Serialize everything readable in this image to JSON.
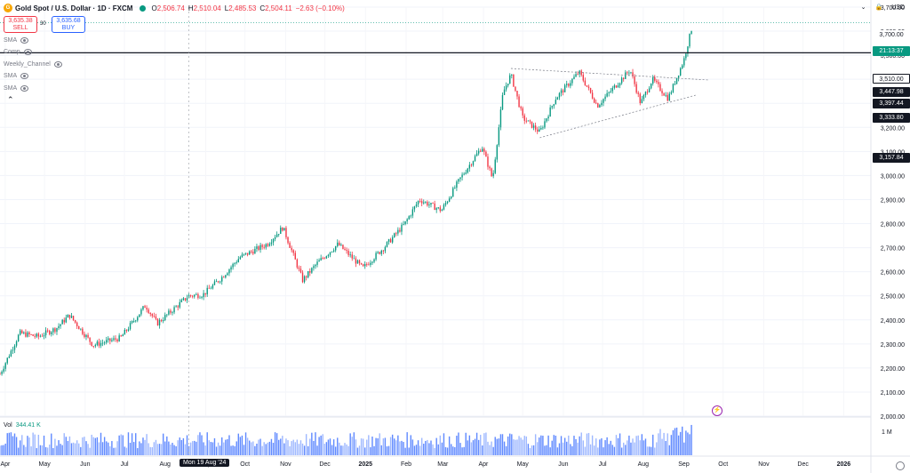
{
  "header": {
    "symbol": "Gold Spot / U.S. Dollar · 1D · FXCM",
    "o_label": "O",
    "o_value": "2,506.74",
    "h_label": "H",
    "h_value": "2,510.04",
    "l_label": "L",
    "l_value": "2,485.53",
    "c_label": "C",
    "c_value": "2,504.11",
    "change": "−2.63 (−0.10%)"
  },
  "trade": {
    "sell_price": "3,635.38",
    "sell_label": "SELL",
    "spread": "30",
    "buy_price": "3,635.68",
    "buy_label": "BUY"
  },
  "indicators": [
    "SMA",
    "Comp",
    "Weekly_Channel",
    "SMA",
    "SMA"
  ],
  "currency": "USD",
  "volume": {
    "label": "Vol",
    "value": "344.41 K",
    "axis_label": "1 M"
  },
  "crosshair_date": "Mon 19 Aug '24",
  "price_labels": {
    "top": "3,700.00",
    "current_time": "21:13:37",
    "level": "3,510.00",
    "p1": "3,447.98",
    "p2": "3,397.44",
    "p3": "3,333.80",
    "p4": "3,157.84"
  },
  "colors": {
    "up": "#089981",
    "down": "#f23645",
    "level_line": "#131722",
    "current": "#089981",
    "volume": "#2962ff"
  },
  "chart_data": {
    "type": "candlestick",
    "title": "Gold Spot / U.S. Dollar · 1D · FXCM",
    "ylim": [
      2000,
      3700
    ],
    "y_ticks": [
      "2,000.00",
      "2,100.00",
      "2,200.00",
      "2,300.00",
      "2,400.00",
      "2,500.00",
      "2,600.00",
      "2,700.00",
      "2,800.00",
      "2,900.00",
      "3,000.00",
      "3,100.00",
      "3,200.00",
      "3,300.00",
      "3,400.00",
      "3,500.00",
      "3,600.00",
      "3,700.00"
    ],
    "x_ticks": [
      "Apr",
      "May",
      "Jun",
      "Jul",
      "Aug",
      "Sep",
      "Oct",
      "Nov",
      "Dec",
      "2025",
      "Feb",
      "Mar",
      "Apr",
      "May",
      "Jun",
      "Jul",
      "Aug",
      "Sep",
      "Oct",
      "Nov",
      "Dec",
      "2026"
    ],
    "close_path": [
      [
        "2024-03-28",
        2175
      ],
      [
        "2024-04-12",
        2345
      ],
      [
        "2024-04-26",
        2330
      ],
      [
        "2024-05-10",
        2365
      ],
      [
        "2024-05-20",
        2420
      ],
      [
        "2024-06-07",
        2295
      ],
      [
        "2024-06-28",
        2325
      ],
      [
        "2024-07-17",
        2460
      ],
      [
        "2024-07-26",
        2385
      ],
      [
        "2024-08-19",
        2500
      ],
      [
        "2024-08-30",
        2505
      ],
      [
        "2024-09-13",
        2575
      ],
      [
        "2024-09-27",
        2660
      ],
      [
        "2024-10-18",
        2715
      ],
      [
        "2024-10-30",
        2785
      ],
      [
        "2024-11-14",
        2565
      ],
      [
        "2024-11-25",
        2635
      ],
      [
        "2024-12-11",
        2715
      ],
      [
        "2024-12-30",
        2615
      ],
      [
        "2025-01-15",
        2700
      ],
      [
        "2025-01-31",
        2800
      ],
      [
        "2025-02-11",
        2900
      ],
      [
        "2025-02-28",
        2855
      ],
      [
        "2025-03-14",
        2985
      ],
      [
        "2025-03-31",
        3120
      ],
      [
        "2025-04-08",
        2985
      ],
      [
        "2025-04-16",
        3345
      ],
      [
        "2025-04-22",
        3420
      ],
      [
        "2025-05-01",
        3240
      ],
      [
        "2025-05-14",
        3180
      ],
      [
        "2025-05-26",
        3320
      ],
      [
        "2025-06-13",
        3430
      ],
      [
        "2025-06-27",
        3290
      ],
      [
        "2025-07-22",
        3440
      ],
      [
        "2025-07-30",
        3300
      ],
      [
        "2025-08-08",
        3400
      ],
      [
        "2025-08-20",
        3320
      ],
      [
        "2025-09-01",
        3480
      ],
      [
        "2025-09-08",
        3635
      ]
    ],
    "horizontal_levels": [
      3510
    ],
    "triangle": {
      "upper": [
        [
          "2025-04-22",
          3445
        ],
        [
          "2025-09-20",
          3397
        ]
      ],
      "lower": [
        [
          "2025-05-14",
          3157
        ],
        [
          "2025-09-10",
          3334
        ]
      ]
    },
    "last_price": 3635.38,
    "volume_max": "1 M"
  }
}
